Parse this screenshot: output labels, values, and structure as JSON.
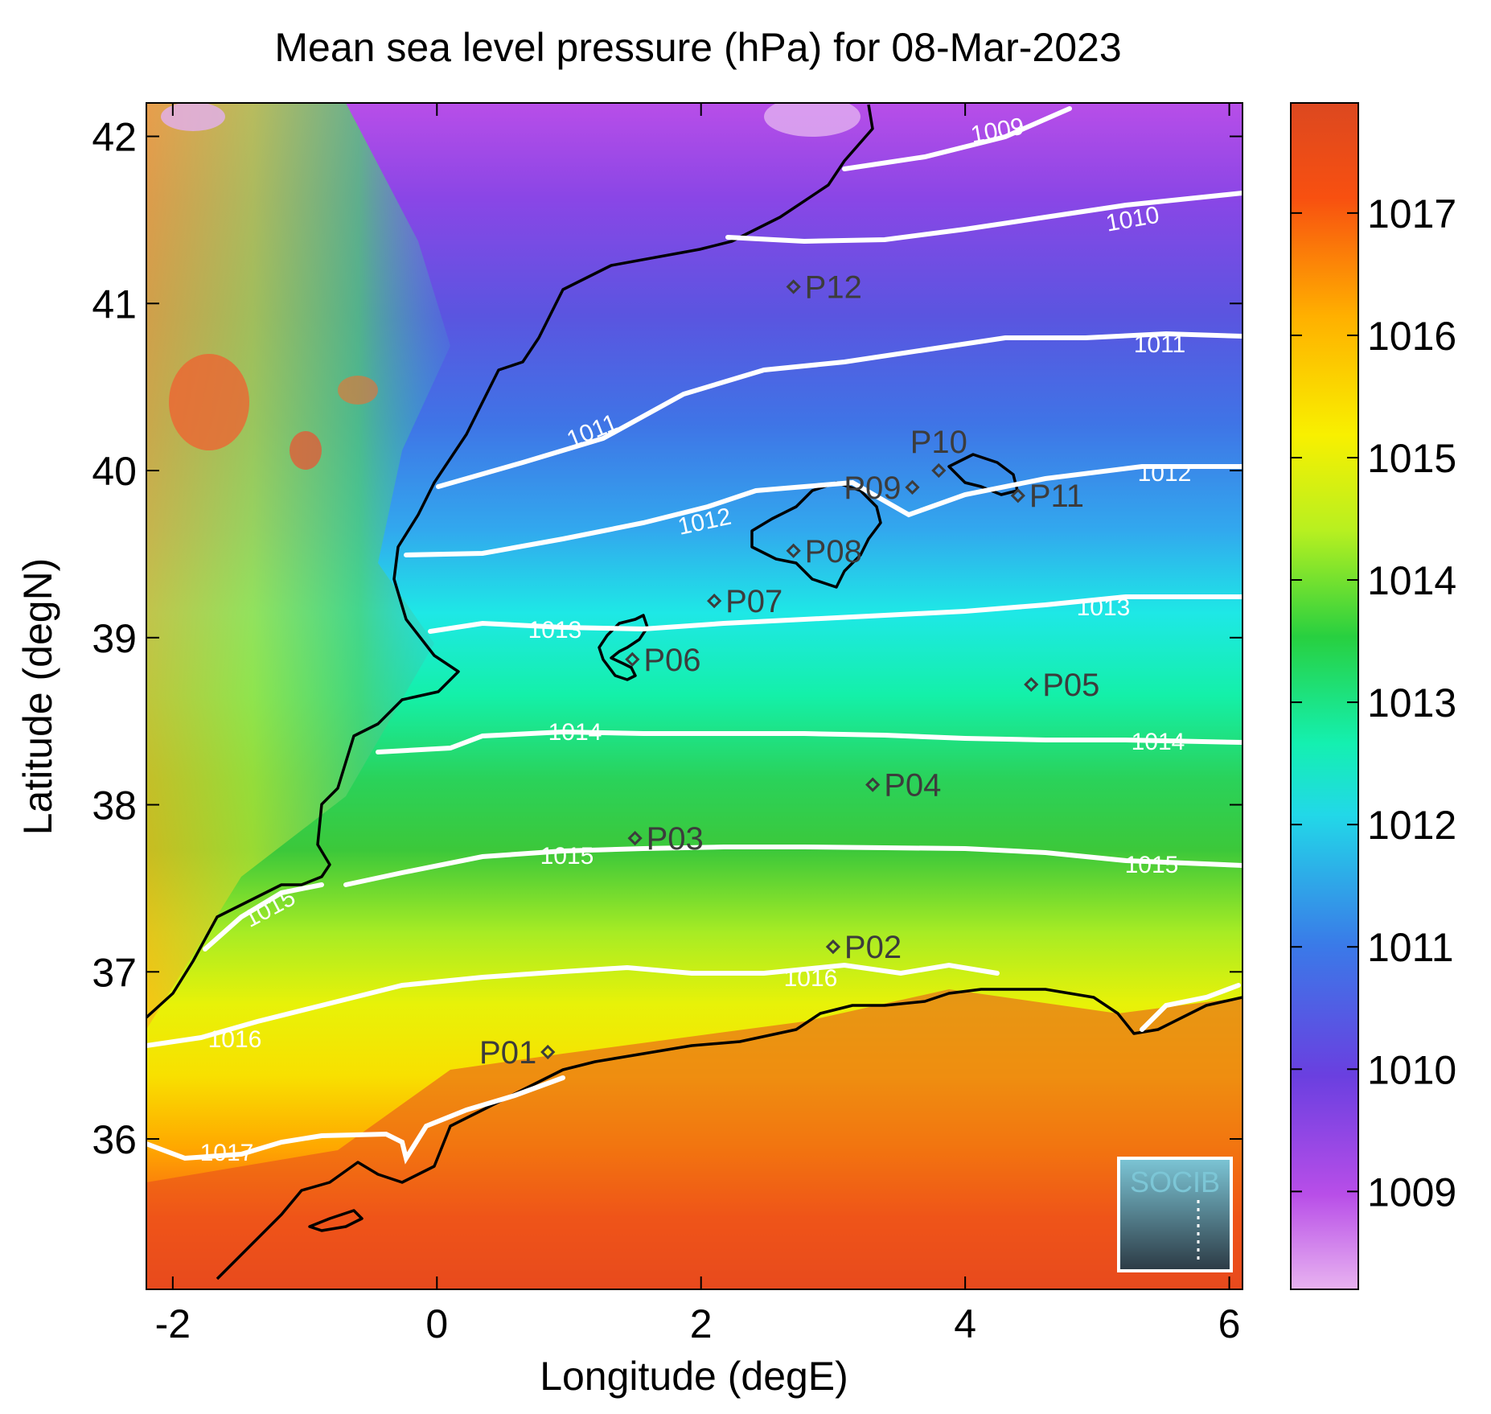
{
  "title": "Mean sea level pressure (hPa) for 08-Mar-2023",
  "xlabel": "Longitude (degE)",
  "ylabel": "Latitude (degN)",
  "x_ticks": [
    "-2",
    "0",
    "2",
    "4",
    "6"
  ],
  "y_ticks": [
    "36",
    "37",
    "38",
    "39",
    "40",
    "41",
    "42"
  ],
  "colorbar_ticks": [
    "1009",
    "1010",
    "1011",
    "1012",
    "1013",
    "1014",
    "1015",
    "1016",
    "1017"
  ],
  "logo_text": "SOCIB",
  "contour_labels": [
    "1009",
    "1010",
    "1011",
    "1011",
    "1012",
    "1012",
    "1013",
    "1013",
    "1014",
    "1014",
    "1015",
    "1015",
    "1015",
    "1016",
    "1016",
    "1017"
  ],
  "colors": {
    "land_coast": "#000000",
    "contours": "#ffffff",
    "markers": "#3c3c3c",
    "colorbar_stops": [
      "#e8b3f0",
      "#b84ee8",
      "#6a3fe0",
      "#3a7ae8",
      "#22d8e8",
      "#14f0b0",
      "#28d040",
      "#b8f020",
      "#f8f000",
      "#ffb000",
      "#f85010",
      "#dc4820"
    ]
  },
  "chart_data": {
    "type": "heatmap",
    "title": "Mean sea level pressure (hPa) for 08-Mar-2023",
    "xlabel": "Longitude (degE)",
    "ylabel": "Latitude (degN)",
    "xlim": [
      -2.2,
      6.1
    ],
    "ylim": [
      35.1,
      42.2
    ],
    "colorbar_range": [
      1008.2,
      1017.9
    ],
    "contour_levels": [
      1009,
      1010,
      1011,
      1012,
      1013,
      1014,
      1015,
      1016,
      1017
    ],
    "stations": [
      {
        "name": "P01",
        "lon": 0.84,
        "lat": 36.52
      },
      {
        "name": "P02",
        "lon": 3.0,
        "lat": 37.15
      },
      {
        "name": "P03",
        "lon": 1.5,
        "lat": 37.8
      },
      {
        "name": "P04",
        "lon": 3.3,
        "lat": 38.12
      },
      {
        "name": "P05",
        "lon": 4.5,
        "lat": 38.72
      },
      {
        "name": "P06",
        "lon": 1.48,
        "lat": 38.87
      },
      {
        "name": "P07",
        "lon": 2.1,
        "lat": 39.22
      },
      {
        "name": "P08",
        "lon": 2.7,
        "lat": 39.52
      },
      {
        "name": "P09",
        "lon": 3.6,
        "lat": 39.9
      },
      {
        "name": "P10",
        "lon": 3.8,
        "lat": 40.0
      },
      {
        "name": "P11",
        "lon": 4.4,
        "lat": 39.85
      },
      {
        "name": "P12",
        "lon": 2.7,
        "lat": 41.1
      }
    ]
  }
}
